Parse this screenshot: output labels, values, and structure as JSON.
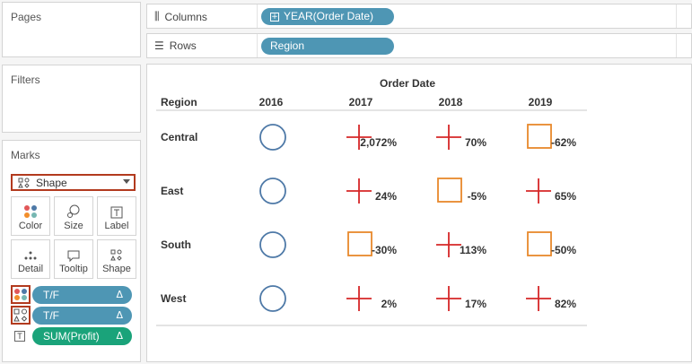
{
  "panels": {
    "pages_title": "Pages",
    "filters_title": "Filters",
    "marks_title": "Marks"
  },
  "shelves": {
    "columns_label": "Columns",
    "columns_pill": "YEAR(Order Date)",
    "rows_label": "Rows",
    "rows_pill": "Region"
  },
  "marks": {
    "mark_type": "Shape",
    "cards": [
      {
        "label": "Color",
        "icon": "color-icon"
      },
      {
        "label": "Size",
        "icon": "size-icon"
      },
      {
        "label": "Label",
        "icon": "label-icon"
      },
      {
        "label": "Detail",
        "icon": "detail-icon"
      },
      {
        "label": "Tooltip",
        "icon": "tooltip-icon"
      },
      {
        "label": "Shape",
        "icon": "shape-icon"
      }
    ],
    "fields": [
      {
        "name": "T/F",
        "delta": "Δ",
        "role": "color",
        "color": "#4e96b4"
      },
      {
        "name": "T/F",
        "delta": "Δ",
        "role": "shape",
        "color": "#4e96b4"
      },
      {
        "name": "SUM(Profit)",
        "delta": "Δ",
        "role": "label",
        "color": "#1aa37a"
      }
    ]
  },
  "view": {
    "column_header": "Order Date",
    "row_header": "Region",
    "years": [
      "2016",
      "2017",
      "2018",
      "2019"
    ],
    "rows": [
      {
        "region": "Central",
        "cells": [
          {
            "shape": "circle",
            "label": ""
          },
          {
            "shape": "plus",
            "label": "2,072%"
          },
          {
            "shape": "plus",
            "label": "70%"
          },
          {
            "shape": "square",
            "label": "-62%"
          }
        ]
      },
      {
        "region": "East",
        "cells": [
          {
            "shape": "circle",
            "label": ""
          },
          {
            "shape": "plus",
            "label": "24%"
          },
          {
            "shape": "square",
            "label": "-5%"
          },
          {
            "shape": "plus",
            "label": "65%"
          }
        ]
      },
      {
        "region": "South",
        "cells": [
          {
            "shape": "circle",
            "label": ""
          },
          {
            "shape": "square",
            "label": "-30%"
          },
          {
            "shape": "plus",
            "label": "113%"
          },
          {
            "shape": "square",
            "label": "-50%"
          }
        ]
      },
      {
        "region": "West",
        "cells": [
          {
            "shape": "circle",
            "label": ""
          },
          {
            "shape": "plus",
            "label": "2%"
          },
          {
            "shape": "plus",
            "label": "17%"
          },
          {
            "shape": "plus",
            "label": "82%"
          }
        ]
      }
    ],
    "colors": {
      "circle": "#4e79a7",
      "plus": "#d62728",
      "square": "#e8892b"
    }
  }
}
